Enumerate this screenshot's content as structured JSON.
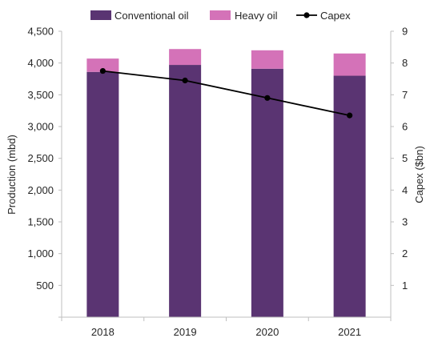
{
  "chart_data": {
    "type": "bar",
    "stacked": true,
    "categories": [
      "2018",
      "2019",
      "2020",
      "2021"
    ],
    "series": [
      {
        "name": "Conventional oil",
        "kind": "bar",
        "axis": "left",
        "values": [
          3860,
          3970,
          3910,
          3800
        ]
      },
      {
        "name": "Heavy oil",
        "kind": "bar",
        "axis": "left",
        "values": [
          210,
          250,
          290,
          350
        ]
      },
      {
        "name": "Capex",
        "kind": "line",
        "axis": "right",
        "values": [
          7.75,
          7.45,
          6.9,
          6.35
        ]
      }
    ],
    "ylabel": "Production (mbd)",
    "y2label": "Capex ($bn)",
    "ylim": [
      0,
      4500
    ],
    "y2lim": [
      0,
      9
    ],
    "yticks": [
      "500",
      "1,000",
      "1,500",
      "2,000",
      "2,500",
      "3,000",
      "3,500",
      "4,000",
      "4,500"
    ],
    "y2ticks": [
      "1",
      "2",
      "3",
      "4",
      "5",
      "6",
      "7",
      "8",
      "9"
    ],
    "legend_position": "top",
    "grid": false,
    "colors": {
      "conventional": "#5a3472",
      "heavy": "#d472b8",
      "capex": "#000000",
      "axis": "#bfbfbf"
    }
  }
}
